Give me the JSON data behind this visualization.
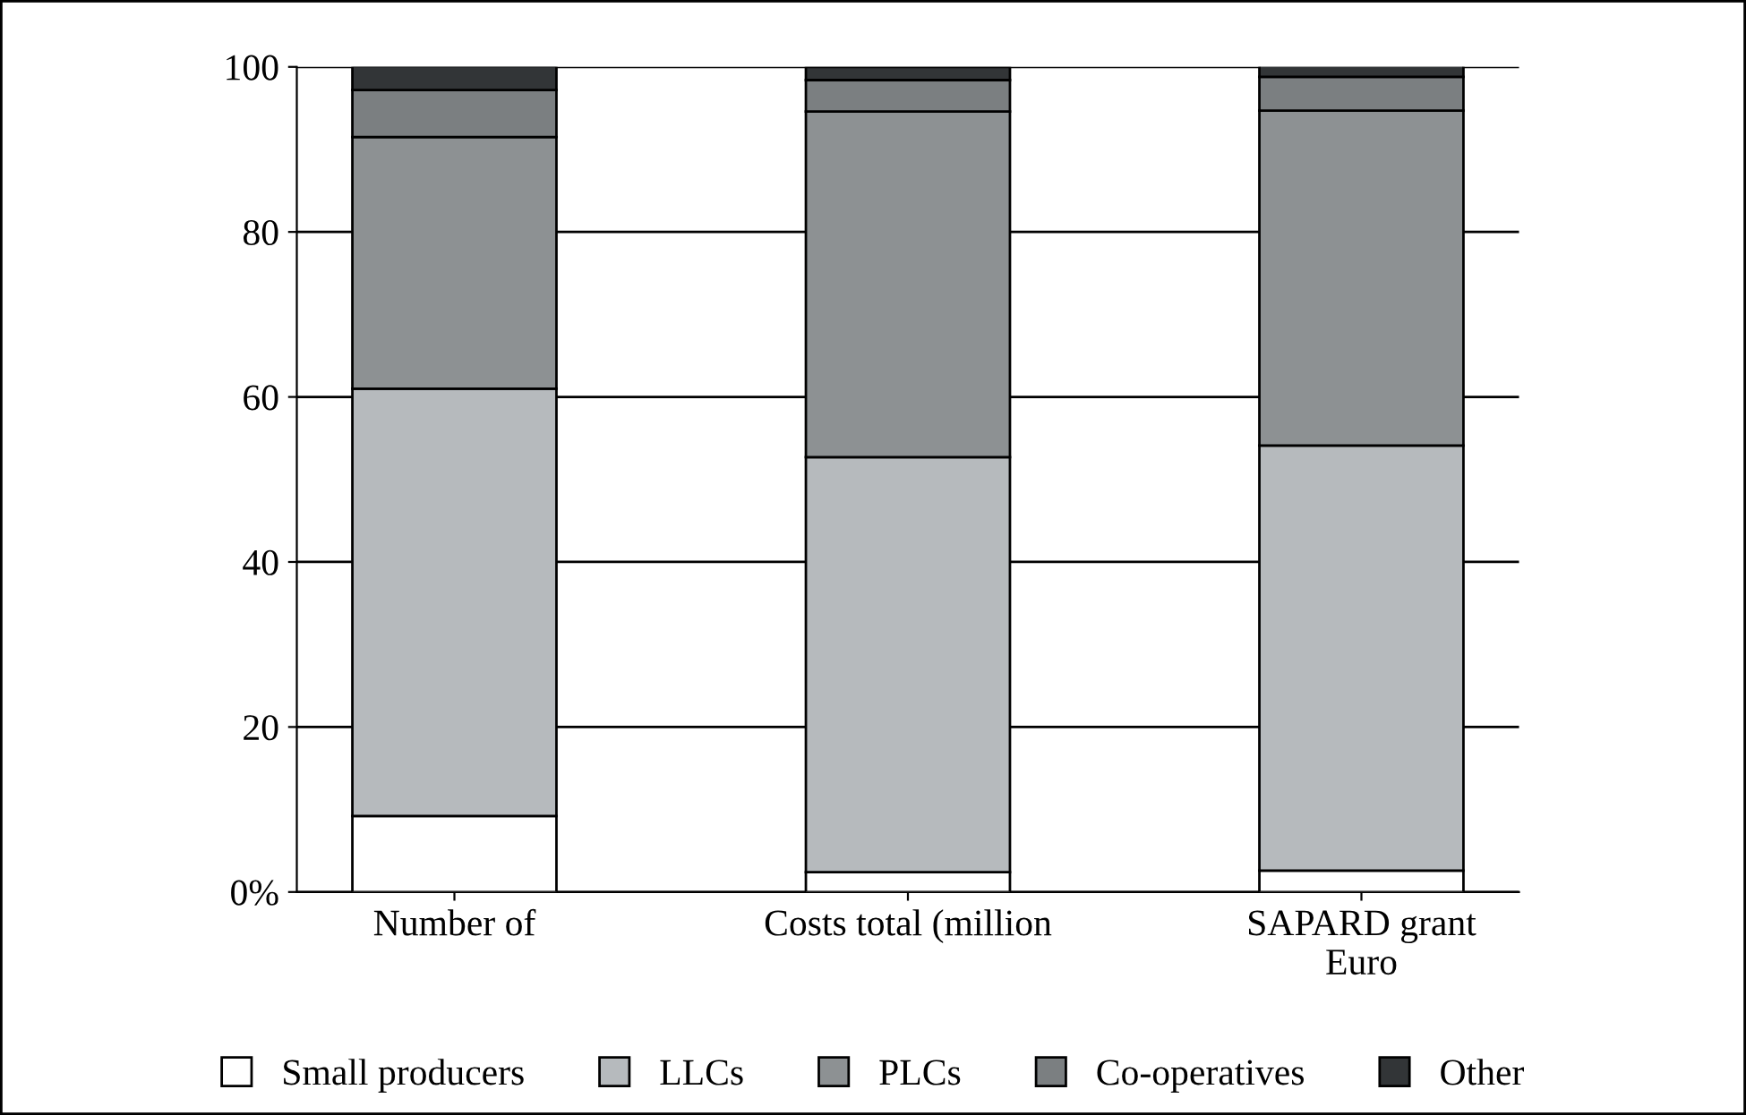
{
  "chart_data": {
    "type": "bar",
    "stacked": true,
    "categories": [
      "Number of",
      "Costs total (million",
      "SAPARD grant\nEuro"
    ],
    "series": [
      {
        "name": "Small producers",
        "color": "#ffffff",
        "values": [
          9.2,
          2.4,
          2.6
        ]
      },
      {
        "name": "LLCs",
        "color": "#b6babd",
        "values": [
          51.8,
          50.3,
          51.5
        ]
      },
      {
        "name": "PLCs",
        "color": "#8d9193",
        "values": [
          30.5,
          41.9,
          40.6
        ]
      },
      {
        "name": "Co-operatives",
        "color": "#7b7f81",
        "values": [
          5.7,
          3.8,
          4.1
        ]
      },
      {
        "name": "Other",
        "color": "#323537",
        "values": [
          2.9,
          1.6,
          1.6
        ]
      }
    ],
    "ylim": [
      0,
      100
    ],
    "yticks": [
      {
        "value": 0,
        "label": "0%"
      },
      20,
      40,
      60,
      80,
      100
    ],
    "grid": "y",
    "legend": "bottom"
  }
}
